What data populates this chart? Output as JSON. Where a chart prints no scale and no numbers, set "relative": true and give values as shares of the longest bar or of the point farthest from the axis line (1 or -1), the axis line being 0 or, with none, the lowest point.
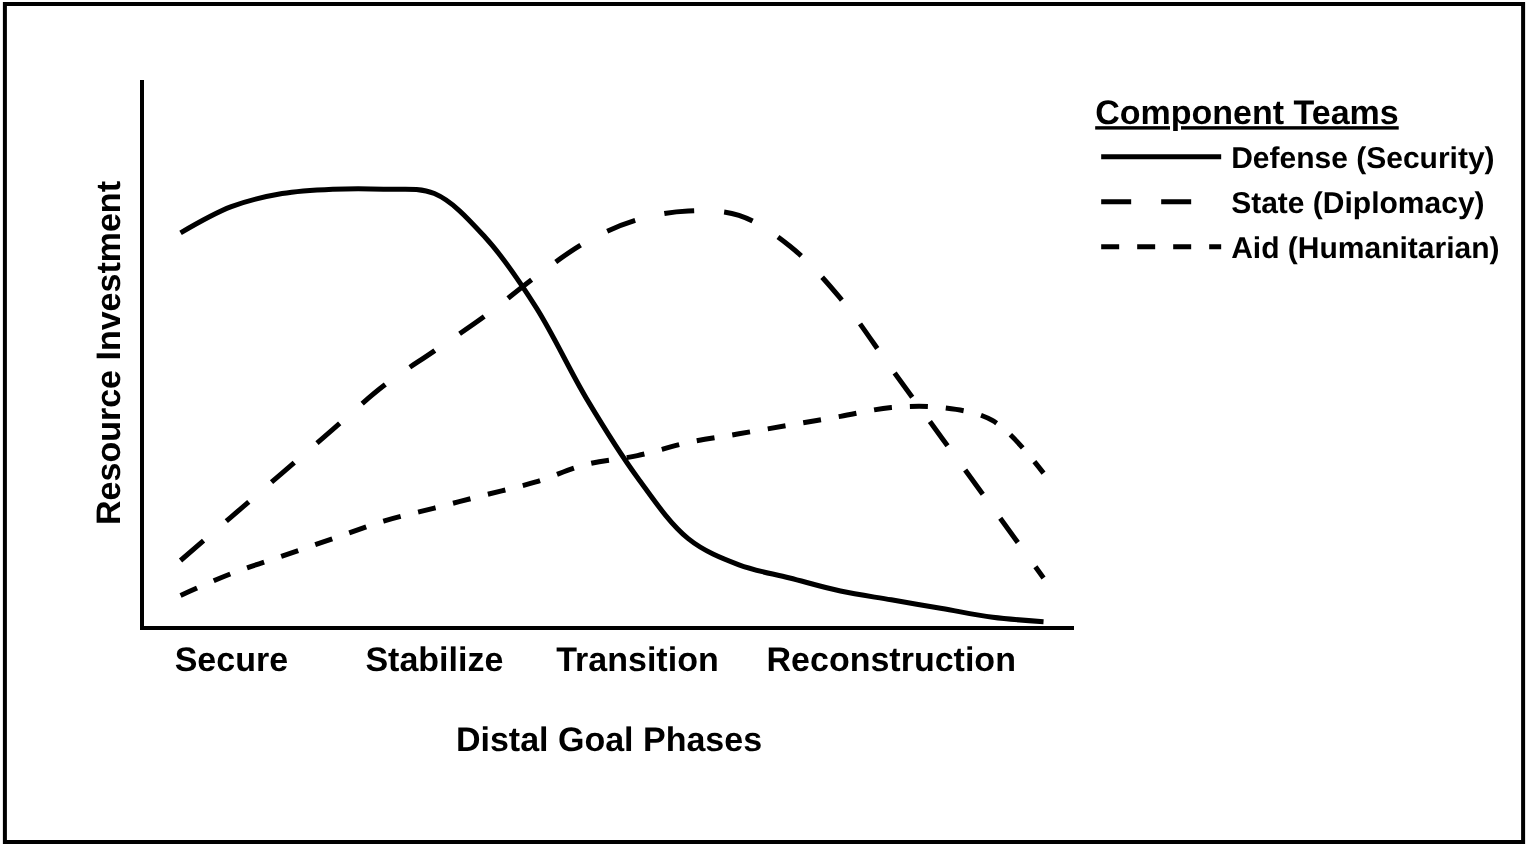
{
  "chart_data": {
    "type": "line",
    "relative": true,
    "xlabel": "Distal Goal Phases",
    "ylabel": "Resource Investment",
    "legend_title": "Component Teams",
    "categories": [
      null,
      "Secure",
      null,
      null,
      null,
      "Stabilize",
      null,
      null,
      null,
      "Transition",
      null,
      null,
      null,
      null,
      "Reconstruction",
      null,
      null,
      null
    ],
    "series": [
      {
        "name": "Defense (Security)",
        "color": "#000000",
        "line_style": "solid",
        "values": [
          0.9,
          0.96,
          0.99,
          1.0,
          1.0,
          0.99,
          0.89,
          0.73,
          0.52,
          0.34,
          0.2,
          0.14,
          0.11,
          0.08,
          0.06,
          0.04,
          0.02,
          0.01
        ]
      },
      {
        "name": "State (Diplomacy)",
        "color": "#000000",
        "line_style": "dashed",
        "values": [
          0.15,
          0.25,
          0.35,
          0.45,
          0.55,
          0.63,
          0.71,
          0.8,
          0.88,
          0.93,
          0.95,
          0.94,
          0.87,
          0.75,
          0.59,
          0.43,
          0.27,
          0.11
        ]
      },
      {
        "name": "Aid (Humanitarian)",
        "color": "#000000",
        "line_style": "dotted",
        "values": [
          0.07,
          0.12,
          0.16,
          0.2,
          0.24,
          0.27,
          0.3,
          0.33,
          0.37,
          0.39,
          0.42,
          0.44,
          0.46,
          0.48,
          0.5,
          0.5,
          0.47,
          0.35
        ]
      }
    ],
    "legend": "top right"
  }
}
